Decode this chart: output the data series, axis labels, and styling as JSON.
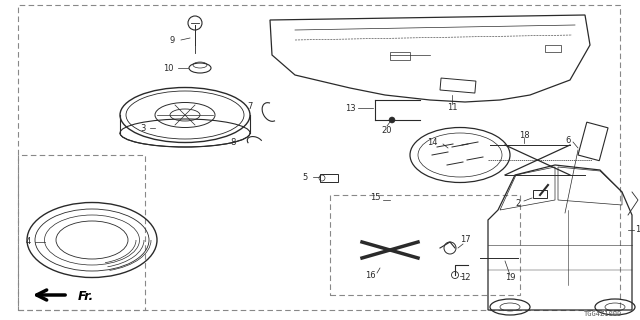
{
  "background_color": "#ffffff",
  "diagram_code": "TGG4Z1000",
  "part_color": "#2a2a2a",
  "dash_color": "#888888"
}
